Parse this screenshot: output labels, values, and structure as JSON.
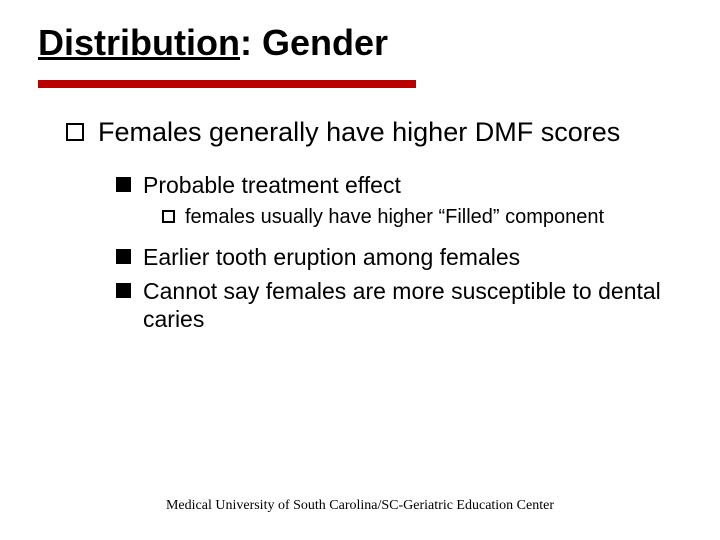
{
  "title_underlined": "Distribution",
  "title_rest": ": Gender",
  "accent_color": "#b90000",
  "bullets": {
    "l1_1": "Females generally have higher DMF scores",
    "l2_1": "Probable treatment effect",
    "l3_1": "females usually have higher “Filled” component",
    "l2_2": "Earlier tooth eruption among females",
    "l2_3": "Cannot say females are more susceptible to dental caries"
  },
  "footer": "Medical University of South Carolina/SC-Geriatric Education Center"
}
